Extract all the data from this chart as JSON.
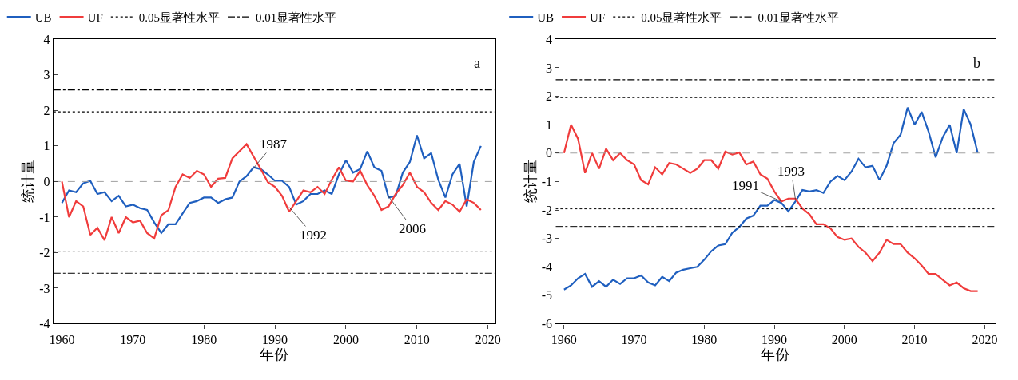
{
  "chart_data": [
    {
      "type": "line",
      "xlabel": "年份",
      "ylabel": "统计量",
      "x": [
        1960,
        1961,
        1962,
        1963,
        1964,
        1965,
        1966,
        1967,
        1968,
        1969,
        1970,
        1971,
        1972,
        1973,
        1974,
        1975,
        1976,
        1977,
        1978,
        1979,
        1980,
        1981,
        1982,
        1983,
        1984,
        1985,
        1986,
        1987,
        1988,
        1989,
        1990,
        1991,
        1992,
        1993,
        1994,
        1995,
        1996,
        1997,
        1998,
        1999,
        2000,
        2001,
        2002,
        2003,
        2004,
        2005,
        2006,
        2007,
        2008,
        2009,
        2010,
        2011,
        2012,
        2013,
        2014,
        2015,
        2016,
        2017,
        2018,
        2019
      ],
      "xlim": [
        1958.8,
        2021
      ],
      "xticks": [
        1960,
        1970,
        1980,
        1990,
        2000,
        2010,
        2020
      ],
      "ylim": [
        -4,
        4
      ],
      "yticks": [
        -4,
        -3,
        -2,
        -1,
        0,
        1,
        2,
        3,
        4
      ],
      "grid": false,
      "legend": "top",
      "line_style": "solid",
      "marker": "none",
      "series": [
        {
          "name": "UB",
          "color": "#1f5fbf",
          "values": [
            -0.6,
            -0.25,
            -0.3,
            -0.05,
            0.02,
            -0.35,
            -0.3,
            -0.55,
            -0.4,
            -0.7,
            -0.65,
            -0.75,
            -0.8,
            -1.15,
            -1.45,
            -1.2,
            -1.2,
            -0.9,
            -0.6,
            -0.55,
            -0.45,
            -0.45,
            -0.6,
            -0.5,
            -0.45,
            0.0,
            0.15,
            0.4,
            0.35,
            0.2,
            0.02,
            0.02,
            -0.15,
            -0.65,
            -0.55,
            -0.35,
            -0.35,
            -0.25,
            -0.35,
            0.2,
            0.6,
            0.25,
            0.35,
            0.85,
            0.4,
            0.3,
            -0.45,
            -0.4,
            0.25,
            0.55,
            1.3,
            0.65,
            0.8,
            0.05,
            -0.45,
            0.2,
            0.5,
            -0.7,
            0.55,
            1.0
          ]
        },
        {
          "name": "UF",
          "color": "#f03c3c",
          "values": [
            0,
            -1.0,
            -0.55,
            -0.7,
            -1.5,
            -1.3,
            -1.65,
            -1.0,
            -1.45,
            -1.0,
            -1.15,
            -1.1,
            -1.45,
            -1.6,
            -0.95,
            -0.8,
            -0.15,
            0.2,
            0.1,
            0.3,
            0.2,
            -0.15,
            0.08,
            0.1,
            0.65,
            0.85,
            1.05,
            0.7,
            0.35,
            -0.02,
            -0.15,
            -0.4,
            -0.85,
            -0.55,
            -0.25,
            -0.3,
            -0.15,
            -0.35,
            0.05,
            0.4,
            0.02,
            0.0,
            0.3,
            -0.1,
            -0.4,
            -0.8,
            -0.7,
            -0.35,
            -0.1,
            0.25,
            -0.15,
            -0.3,
            -0.6,
            -0.8,
            -0.55,
            -0.65,
            -0.85,
            -0.5,
            -0.6,
            -0.8
          ]
        }
      ],
      "ref_lines": [
        {
          "axis": "y",
          "value": 0,
          "color": "#a0a0a0",
          "line_style": "dashed"
        },
        {
          "axis": "y",
          "value": 1.96,
          "label": "0.05显著性水平",
          "color": "#000000",
          "line_style": "dotted"
        },
        {
          "axis": "y",
          "value": -1.96,
          "color": "#000000",
          "line_style": "dotted"
        },
        {
          "axis": "y",
          "value": 2.58,
          "label": "0.01显著性水平",
          "color": "#000000",
          "line_style": "dashdot"
        },
        {
          "axis": "y",
          "value": -2.58,
          "color": "#000000",
          "line_style": "dashdot"
        }
      ],
      "annotations": [
        "a",
        {
          "text": "1987",
          "x": 1987,
          "y": 0.38
        },
        {
          "text": "1992",
          "x": 1992,
          "y": -0.72
        },
        {
          "text": "2006",
          "x": 2006,
          "y": -0.42
        }
      ]
    },
    {
      "type": "line",
      "xlabel": "年份",
      "ylabel": "统计量",
      "x": [
        1960,
        1961,
        1962,
        1963,
        1964,
        1965,
        1966,
        1967,
        1968,
        1969,
        1970,
        1971,
        1972,
        1973,
        1974,
        1975,
        1976,
        1977,
        1978,
        1979,
        1980,
        1981,
        1982,
        1983,
        1984,
        1985,
        1986,
        1987,
        1988,
        1989,
        1990,
        1991,
        1992,
        1993,
        1994,
        1995,
        1996,
        1997,
        1998,
        1999,
        2000,
        2001,
        2002,
        2003,
        2004,
        2005,
        2006,
        2007,
        2008,
        2009,
        2010,
        2011,
        2012,
        2013,
        2014,
        2015,
        2016,
        2017,
        2018,
        2019
      ],
      "xlim": [
        1958.8,
        2021.5
      ],
      "xticks": [
        1960,
        1970,
        1980,
        1990,
        2000,
        2010,
        2020
      ],
      "ylim": [
        -6,
        4
      ],
      "yticks": [
        -6,
        -5,
        -4,
        -3,
        -2,
        -1,
        0,
        1,
        2,
        3,
        4
      ],
      "grid": false,
      "legend": "top",
      "line_style": "solid",
      "marker": "none",
      "series": [
        {
          "name": "UB",
          "color": "#1f5fbf",
          "values": [
            -4.8,
            -4.65,
            -4.4,
            -4.25,
            -4.7,
            -4.5,
            -4.7,
            -4.45,
            -4.6,
            -4.4,
            -4.4,
            -4.3,
            -4.55,
            -4.65,
            -4.35,
            -4.5,
            -4.2,
            -4.1,
            -4.05,
            -4.0,
            -3.75,
            -3.45,
            -3.25,
            -3.2,
            -2.8,
            -2.6,
            -2.3,
            -2.2,
            -1.85,
            -1.85,
            -1.65,
            -1.75,
            -2.05,
            -1.7,
            -1.3,
            -1.35,
            -1.3,
            -1.4,
            -1.0,
            -0.8,
            -0.95,
            -0.65,
            -0.2,
            -0.5,
            -0.45,
            -0.95,
            -0.45,
            0.35,
            0.65,
            1.6,
            1.0,
            1.45,
            0.75,
            -0.15,
            0.55,
            1.0,
            0.0,
            1.55,
            1.0,
            0.0
          ]
        },
        {
          "name": "UF",
          "color": "#f03c3c",
          "values": [
            0,
            1.0,
            0.5,
            -0.7,
            0.0,
            -0.55,
            0.15,
            -0.25,
            0.0,
            -0.25,
            -0.4,
            -0.95,
            -1.1,
            -0.5,
            -0.75,
            -0.35,
            -0.4,
            -0.55,
            -0.7,
            -0.55,
            -0.25,
            -0.25,
            -0.55,
            0.05,
            -0.05,
            0.02,
            -0.4,
            -0.3,
            -0.75,
            -0.9,
            -1.35,
            -1.7,
            -1.6,
            -1.6,
            -1.95,
            -2.15,
            -2.5,
            -2.5,
            -2.65,
            -2.95,
            -3.05,
            -3.0,
            -3.3,
            -3.5,
            -3.8,
            -3.5,
            -3.05,
            -3.2,
            -3.2,
            -3.5,
            -3.7,
            -3.95,
            -4.25,
            -4.25,
            -4.45,
            -4.65,
            -4.55,
            -4.75,
            -4.85,
            -4.85
          ]
        }
      ],
      "ref_lines": [
        {
          "axis": "y",
          "value": 0,
          "color": "#a0a0a0",
          "line_style": "dashed"
        },
        {
          "axis": "y",
          "value": 1.96,
          "label": "0.05显著性水平",
          "color": "#000000",
          "line_style": "dotted"
        },
        {
          "axis": "y",
          "value": -1.96,
          "color": "#000000",
          "line_style": "dotted"
        },
        {
          "axis": "y",
          "value": 2.58,
          "label": "0.01显著性水平",
          "color": "#000000",
          "line_style": "dashdot"
        },
        {
          "axis": "y",
          "value": -2.58,
          "color": "#000000",
          "line_style": "dashdot"
        }
      ],
      "annotations": [
        "b",
        {
          "text": "1991",
          "x": 1991,
          "y": -1.7
        },
        {
          "text": "1993",
          "x": 1993,
          "y": -1.62
        }
      ]
    }
  ]
}
